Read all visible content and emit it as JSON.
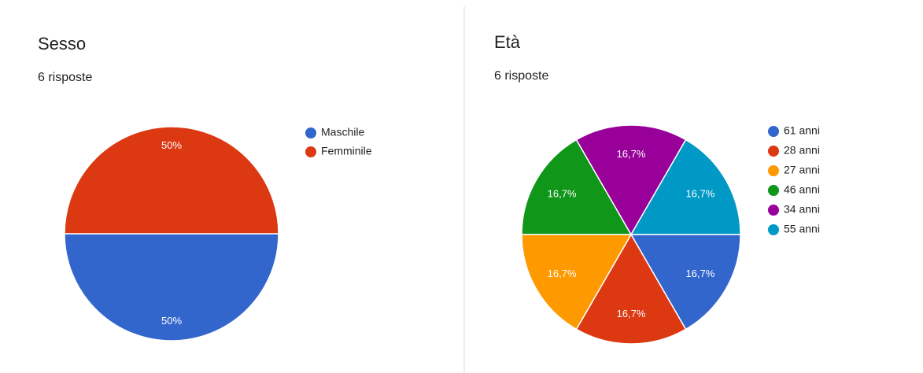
{
  "chart_data": [
    {
      "type": "pie",
      "title": "Sesso",
      "subtitle": "6 risposte",
      "categories": [
        "Maschile",
        "Femminile"
      ],
      "values": [
        50,
        50
      ],
      "value_labels": [
        "50%",
        "50%"
      ],
      "colors": [
        "#3366cc",
        "#dc3912"
      ]
    },
    {
      "type": "pie",
      "title": "Età",
      "subtitle": "6 risposte",
      "categories": [
        "61 anni",
        "28 anni",
        "27 anni",
        "46 anni",
        "34 anni",
        "55 anni"
      ],
      "values": [
        16.7,
        16.7,
        16.7,
        16.7,
        16.7,
        16.7
      ],
      "value_labels": [
        "16,7%",
        "16,7%",
        "16,7%",
        "16,7%",
        "16,7%",
        "16,7%"
      ],
      "colors": [
        "#3366cc",
        "#dc3912",
        "#ff9900",
        "#109618",
        "#990099",
        "#0099c6"
      ]
    }
  ]
}
